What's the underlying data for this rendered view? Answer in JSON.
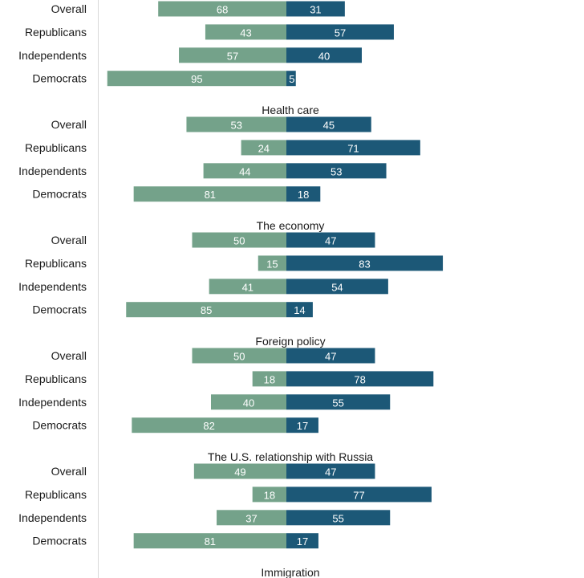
{
  "chart_data": {
    "type": "bar",
    "colors": {
      "left": "#74a28a",
      "right": "#1c5877",
      "axis": "#d9d9d9"
    },
    "groups": [
      {
        "title": "",
        "rows": [
          {
            "label": "Overall",
            "left": 68,
            "right": 31
          },
          {
            "label": "Republicans",
            "left": 43,
            "right": 57
          },
          {
            "label": "Independents",
            "left": 57,
            "right": 40
          },
          {
            "label": "Democrats",
            "left": 95,
            "right": 5
          }
        ]
      },
      {
        "title": "Health care",
        "rows": [
          {
            "label": "Overall",
            "left": 53,
            "right": 45
          },
          {
            "label": "Republicans",
            "left": 24,
            "right": 71
          },
          {
            "label": "Independents",
            "left": 44,
            "right": 53
          },
          {
            "label": "Democrats",
            "left": 81,
            "right": 18
          }
        ]
      },
      {
        "title": "The economy",
        "rows": [
          {
            "label": "Overall",
            "left": 50,
            "right": 47
          },
          {
            "label": "Republicans",
            "left": 15,
            "right": 83
          },
          {
            "label": "Independents",
            "left": 41,
            "right": 54
          },
          {
            "label": "Democrats",
            "left": 85,
            "right": 14
          }
        ]
      },
      {
        "title": "Foreign policy",
        "rows": [
          {
            "label": "Overall",
            "left": 50,
            "right": 47
          },
          {
            "label": "Republicans",
            "left": 18,
            "right": 78
          },
          {
            "label": "Independents",
            "left": 40,
            "right": 55
          },
          {
            "label": "Democrats",
            "left": 82,
            "right": 17
          }
        ]
      },
      {
        "title": "The U.S. relationship with Russia",
        "rows": [
          {
            "label": "Overall",
            "left": 49,
            "right": 47
          },
          {
            "label": "Republicans",
            "left": 18,
            "right": 77
          },
          {
            "label": "Independents",
            "left": 37,
            "right": 55
          },
          {
            "label": "Democrats",
            "left": 81,
            "right": 17
          }
        ]
      },
      {
        "title": "Immigration",
        "rows": []
      }
    ]
  }
}
